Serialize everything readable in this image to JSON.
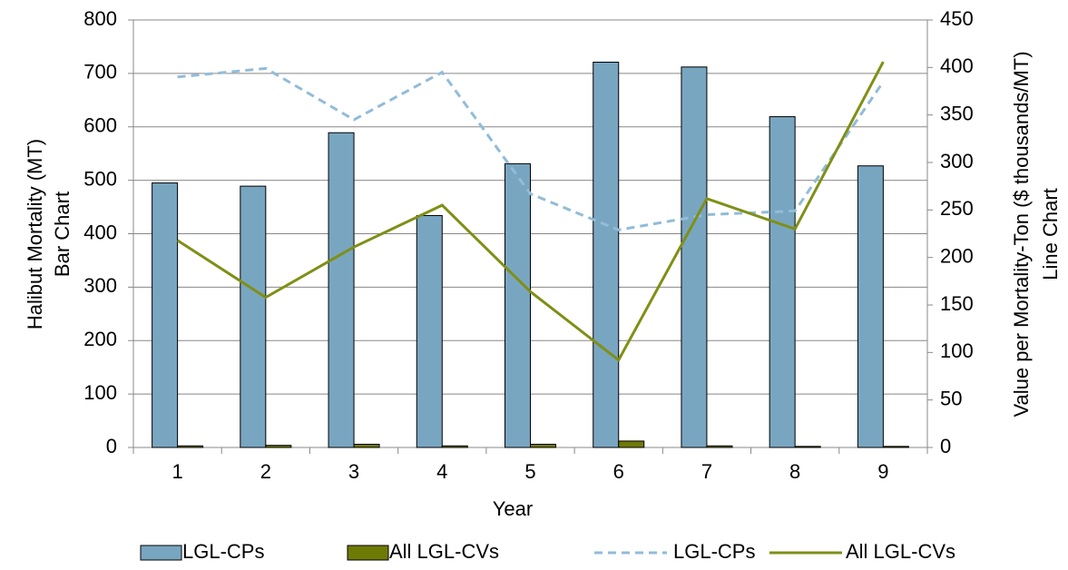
{
  "chart_data": {
    "type": "bar",
    "x_label": "Year",
    "y_label": [
      "Halibut Mortality (MT)",
      "Bar Chart"
    ],
    "y2_label": [
      "Value per Mortality-Ton ($ thousands/MT)",
      "Line Chart"
    ],
    "categories": [
      "1",
      "2",
      "3",
      "4",
      "5",
      "6",
      "7",
      "8",
      "9"
    ],
    "series": [
      {
        "name": "LGL-CPs",
        "type": "bar",
        "color": "#78a6c1",
        "values": [
          495,
          489,
          589,
          434,
          531,
          721,
          712,
          619,
          527
        ]
      },
      {
        "name": "All LGL-CVs",
        "type": "bar",
        "color": "#6e7a06",
        "values": [
          3,
          4,
          6,
          3,
          6,
          12,
          3,
          2,
          2
        ]
      },
      {
        "name": "LGL-CPs",
        "type": "line",
        "axis": "y2",
        "dashed": true,
        "color": "#92bcd8",
        "values": [
          390,
          399,
          345,
          395,
          267,
          229,
          245,
          249,
          385
        ]
      },
      {
        "name": "All LGL-CVs",
        "type": "line",
        "axis": "y2",
        "dashed": false,
        "color": "#808f16",
        "values": [
          218,
          158,
          211,
          255,
          164,
          92,
          262,
          230,
          406
        ]
      }
    ],
    "ylim": [
      0,
      800
    ],
    "yticks": [
      0,
      100,
      200,
      300,
      400,
      500,
      600,
      700,
      800
    ],
    "y2lim": [
      0,
      450
    ],
    "y2ticks": [
      0,
      50,
      100,
      150,
      200,
      250,
      300,
      350,
      400,
      450
    ],
    "grid": true,
    "legend": "bottom"
  }
}
